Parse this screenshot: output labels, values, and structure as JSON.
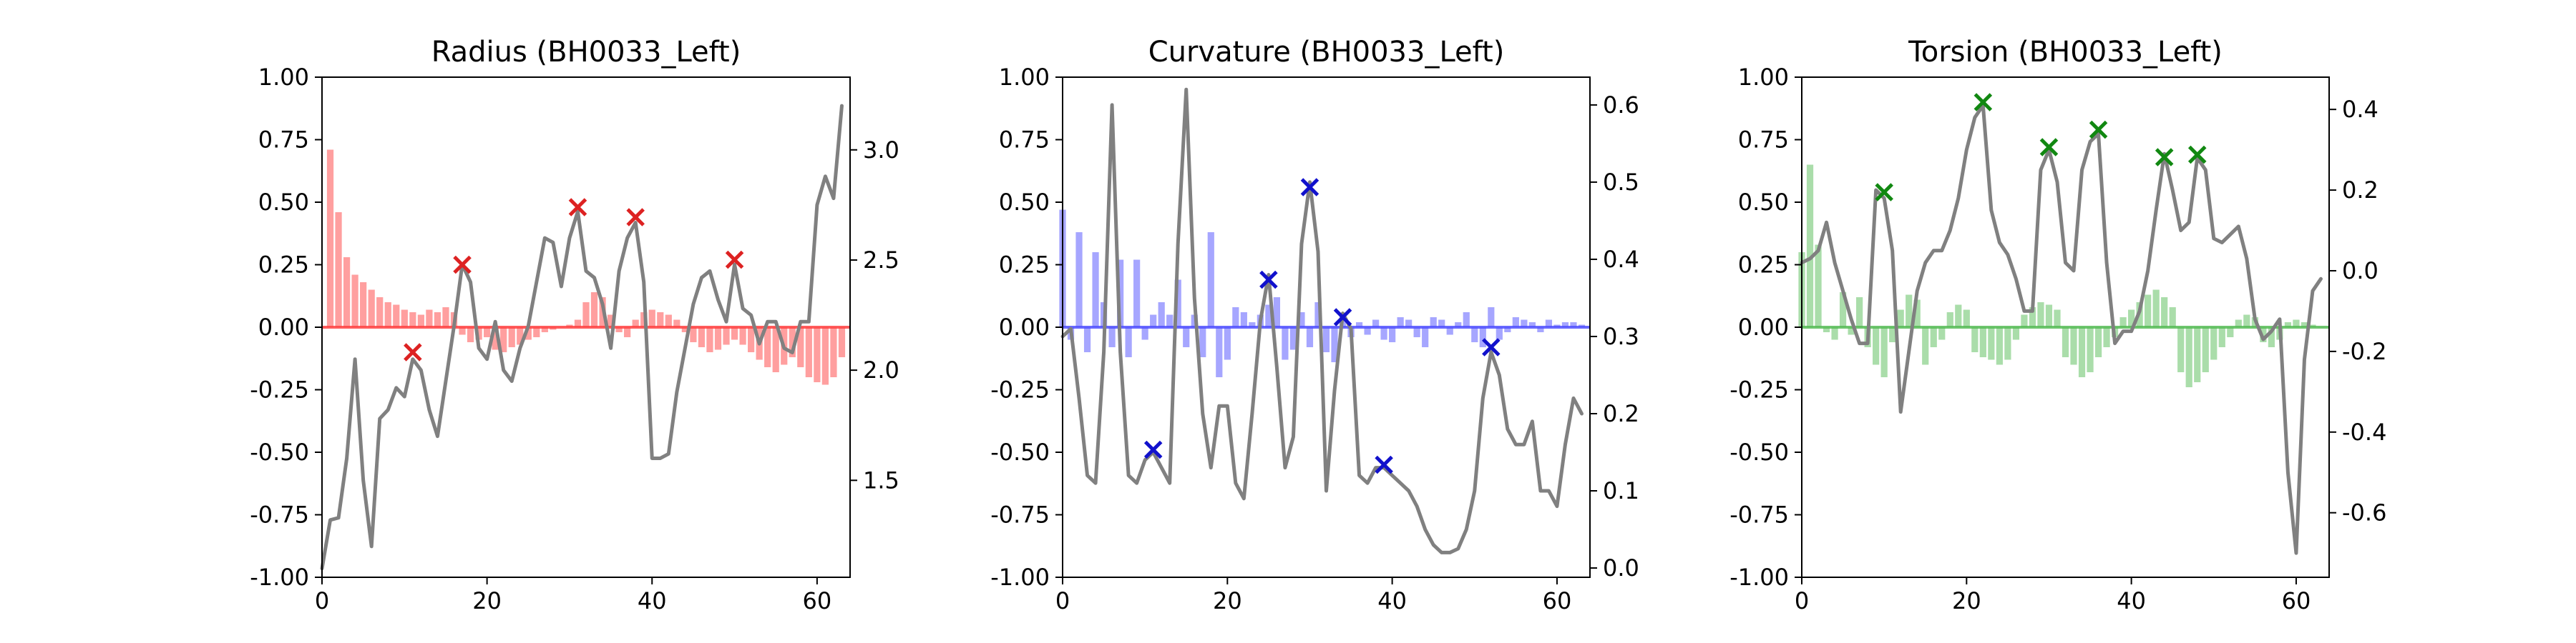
{
  "chart_data": [
    {
      "type": "bar+line",
      "title": "Radius (BH0033_Left)",
      "color": "#ff4040",
      "marker_color": "#dd2222",
      "xlim": [
        0,
        64
      ],
      "ylim": [
        -1,
        1
      ],
      "y2lim": [
        1.06,
        3.33
      ],
      "xticks": [
        "0",
        "20",
        "40",
        "60"
      ],
      "yticks": [
        "1.00",
        "0.75",
        "0.50",
        "0.25",
        "0.00",
        "-0.25",
        "-0.50",
        "-0.75",
        "-1.00"
      ],
      "y2ticks": [
        "3.0",
        "2.5",
        "2.0",
        "1.5"
      ],
      "bars": [
        0,
        0.71,
        0.46,
        0.28,
        0.21,
        0.18,
        0.15,
        0.12,
        0.1,
        0.09,
        0.07,
        0.06,
        0.05,
        0.07,
        0.06,
        0.08,
        0.06,
        -0.03,
        -0.06,
        -0.05,
        -0.04,
        -0.09,
        -0.1,
        -0.08,
        -0.07,
        -0.05,
        -0.04,
        -0.02,
        -0.01,
        0,
        0.01,
        0.03,
        0.1,
        0.14,
        0.12,
        0.05,
        -0.02,
        -0.04,
        0.03,
        0.06,
        0.07,
        0.06,
        0.05,
        0.03,
        -0.02,
        -0.06,
        -0.08,
        -0.1,
        -0.09,
        -0.07,
        -0.05,
        -0.07,
        -0.1,
        -0.13,
        -0.16,
        -0.18,
        -0.15,
        -0.12,
        -0.16,
        -0.2,
        -0.22,
        -0.23,
        -0.2,
        -0.12
      ],
      "line": [
        1.1,
        1.32,
        1.33,
        1.6,
        2.05,
        1.5,
        1.2,
        1.78,
        1.82,
        1.92,
        1.88,
        2.05,
        2.0,
        1.82,
        1.7,
        1.95,
        2.2,
        2.48,
        2.4,
        2.1,
        2.05,
        2.22,
        2.0,
        1.95,
        2.1,
        2.2,
        2.4,
        2.6,
        2.58,
        2.38,
        2.6,
        2.72,
        2.45,
        2.42,
        2.3,
        2.1,
        2.45,
        2.6,
        2.67,
        2.4,
        1.6,
        1.6,
        1.62,
        1.9,
        2.1,
        2.3,
        2.42,
        2.45,
        2.32,
        2.22,
        2.48,
        2.28,
        2.25,
        2.12,
        2.22,
        2.22,
        2.1,
        2.08,
        2.22,
        2.22,
        2.75,
        2.88,
        2.78,
        3.2
      ],
      "markers": [
        {
          "x": 11,
          "y": -0.1
        },
        {
          "x": 17,
          "y": 0.25
        },
        {
          "x": 31,
          "y": 0.48
        },
        {
          "x": 38,
          "y": 0.44
        },
        {
          "x": 50,
          "y": 0.27
        }
      ]
    },
    {
      "type": "bar+line",
      "title": "Curvature (BH0033_Left)",
      "color": "#4d4dff",
      "marker_color": "#1111cc",
      "xlim": [
        0,
        64
      ],
      "ylim": [
        -1,
        1
      ],
      "y2lim": [
        -0.012,
        0.636
      ],
      "xticks": [
        "0",
        "20",
        "40",
        "60"
      ],
      "yticks": [
        "1.00",
        "0.75",
        "0.50",
        "0.25",
        "0.00",
        "-0.25",
        "-0.50",
        "-0.75",
        "-1.00"
      ],
      "y2ticks": [
        "0.6",
        "0.5",
        "0.4",
        "0.3",
        "0.2",
        "0.1",
        "0.0"
      ],
      "bars": [
        0.47,
        -0.05,
        0.38,
        -0.1,
        0.3,
        0.1,
        -0.08,
        0.27,
        -0.12,
        0.27,
        -0.05,
        0.05,
        0.1,
        0.05,
        0.19,
        -0.08,
        0.05,
        -0.12,
        0.38,
        -0.2,
        -0.13,
        0.08,
        0.06,
        0.02,
        0.05,
        0.09,
        0.12,
        -0.13,
        -0.09,
        0.06,
        -0.08,
        0.1,
        -0.1,
        -0.14,
        0.05,
        -0.04,
        0.02,
        -0.03,
        0.03,
        -0.05,
        -0.06,
        0.04,
        0.03,
        -0.04,
        -0.08,
        0.04,
        0.03,
        -0.03,
        0.02,
        0.06,
        -0.06,
        -0.08,
        0.08,
        -0.05,
        -0.02,
        0.04,
        0.03,
        0.02,
        -0.02,
        0.03,
        0.01,
        0.02,
        0.02,
        0.01
      ],
      "line": [
        0.3,
        0.31,
        0.22,
        0.12,
        0.11,
        0.28,
        0.6,
        0.28,
        0.12,
        0.11,
        0.14,
        0.15,
        0.13,
        0.11,
        0.42,
        0.62,
        0.35,
        0.2,
        0.13,
        0.21,
        0.21,
        0.11,
        0.09,
        0.2,
        0.32,
        0.38,
        0.26,
        0.13,
        0.17,
        0.42,
        0.5,
        0.41,
        0.1,
        0.23,
        0.33,
        0.31,
        0.12,
        0.11,
        0.13,
        0.13,
        0.12,
        0.11,
        0.1,
        0.08,
        0.05,
        0.03,
        0.02,
        0.02,
        0.025,
        0.05,
        0.1,
        0.22,
        0.28,
        0.25,
        0.18,
        0.16,
        0.16,
        0.19,
        0.1,
        0.1,
        0.08,
        0.16,
        0.22,
        0.2
      ],
      "markers": [
        {
          "x": 11,
          "y": -0.49
        },
        {
          "x": 25,
          "y": 0.19
        },
        {
          "x": 30,
          "y": 0.56
        },
        {
          "x": 34,
          "y": 0.04
        },
        {
          "x": 39,
          "y": -0.55
        },
        {
          "x": 52,
          "y": -0.08
        }
      ]
    },
    {
      "type": "bar+line",
      "title": "Torsion (BH0033_Left)",
      "color": "#55bb55",
      "marker_color": "#118811",
      "xlim": [
        0,
        64
      ],
      "ylim": [
        -1,
        1
      ],
      "y2lim": [
        -0.76,
        0.48
      ],
      "xticks": [
        "0",
        "20",
        "40",
        "60"
      ],
      "yticks": [
        "1.00",
        "0.75",
        "0.50",
        "0.25",
        "0.00",
        "-0.25",
        "-0.50",
        "-0.75",
        "-1.00"
      ],
      "y2ticks": [
        "0.4",
        "0.2",
        "0.0",
        "-0.2",
        "-0.4",
        "-0.6"
      ],
      "bars": [
        0.3,
        0.65,
        0.33,
        -0.02,
        -0.05,
        0.14,
        -0.03,
        0.12,
        -0.08,
        -0.15,
        -0.2,
        -0.06,
        0.07,
        0.13,
        0.11,
        -0.15,
        -0.08,
        -0.05,
        0.06,
        0.09,
        0.07,
        -0.1,
        -0.12,
        -0.13,
        -0.15,
        -0.13,
        -0.05,
        0.05,
        0.08,
        0.1,
        0.09,
        0.07,
        -0.12,
        -0.15,
        -0.2,
        -0.18,
        -0.12,
        -0.08,
        -0.04,
        0.04,
        0.07,
        0.1,
        0.13,
        0.15,
        0.12,
        0.08,
        -0.18,
        -0.24,
        -0.22,
        -0.18,
        -0.13,
        -0.08,
        -0.04,
        0.03,
        0.05,
        0.04,
        -0.06,
        -0.08,
        -0.05,
        0.02,
        0.03,
        0.02,
        0.01,
        0.0
      ],
      "line": [
        0.02,
        0.03,
        0.05,
        0.12,
        0.02,
        -0.05,
        -0.12,
        -0.18,
        -0.18,
        0.2,
        0.18,
        0.05,
        -0.35,
        -0.2,
        -0.05,
        0.02,
        0.05,
        0.05,
        0.1,
        0.18,
        0.3,
        0.38,
        0.41,
        0.15,
        0.07,
        0.04,
        -0.02,
        -0.1,
        -0.1,
        0.25,
        0.3,
        0.22,
        0.02,
        0.0,
        0.25,
        0.32,
        0.34,
        0.02,
        -0.18,
        -0.15,
        -0.15,
        -0.1,
        0.0,
        0.15,
        0.29,
        0.2,
        0.1,
        0.12,
        0.28,
        0.25,
        0.08,
        0.07,
        0.09,
        0.11,
        0.03,
        -0.12,
        -0.17,
        -0.15,
        -0.12,
        -0.5,
        -0.7,
        -0.22,
        -0.05,
        -0.02
      ],
      "markers": [
        {
          "x": 10,
          "y": 0.54
        },
        {
          "x": 22,
          "y": 0.9
        },
        {
          "x": 30,
          "y": 0.72
        },
        {
          "x": 36,
          "y": 0.79
        },
        {
          "x": 44,
          "y": 0.68
        },
        {
          "x": 48,
          "y": 0.69
        }
      ]
    }
  ]
}
